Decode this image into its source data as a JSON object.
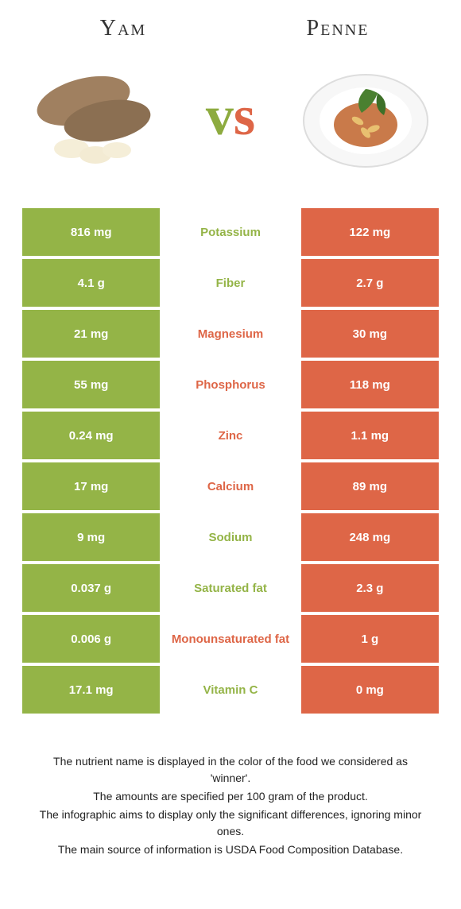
{
  "foods": {
    "left": {
      "name": "Yam",
      "color": "#94b447"
    },
    "right": {
      "name": "Penne",
      "color": "#de6647"
    }
  },
  "vs": {
    "v_color": "#8dab3f",
    "s_color": "#de6647"
  },
  "table": {
    "left_bg": "#94b447",
    "right_bg": "#de6647",
    "mid_bg": "#ffffff",
    "rows": [
      {
        "nutrient": "Potassium",
        "left": "816 mg",
        "right": "122 mg",
        "winner": "left"
      },
      {
        "nutrient": "Fiber",
        "left": "4.1 g",
        "right": "2.7 g",
        "winner": "left"
      },
      {
        "nutrient": "Magnesium",
        "left": "21 mg",
        "right": "30 mg",
        "winner": "right"
      },
      {
        "nutrient": "Phosphorus",
        "left": "55 mg",
        "right": "118 mg",
        "winner": "right"
      },
      {
        "nutrient": "Zinc",
        "left": "0.24 mg",
        "right": "1.1 mg",
        "winner": "right"
      },
      {
        "nutrient": "Calcium",
        "left": "17 mg",
        "right": "89 mg",
        "winner": "right"
      },
      {
        "nutrient": "Sodium",
        "left": "9 mg",
        "right": "248 mg",
        "winner": "left"
      },
      {
        "nutrient": "Saturated fat",
        "left": "0.037 g",
        "right": "2.3 g",
        "winner": "left"
      },
      {
        "nutrient": "Monounsaturated fat",
        "left": "0.006 g",
        "right": "1 g",
        "winner": "right"
      },
      {
        "nutrient": "Vitamin C",
        "left": "17.1 mg",
        "right": "0 mg",
        "winner": "left"
      }
    ]
  },
  "footer": {
    "line1": "The nutrient name is displayed in the color of the food we considered as 'winner'.",
    "line2": "The amounts are specified per 100 gram of the product.",
    "line3": "The infographic aims to display only the significant differences, ignoring minor ones.",
    "line4": "The main source of information is USDA Food Composition Database."
  }
}
